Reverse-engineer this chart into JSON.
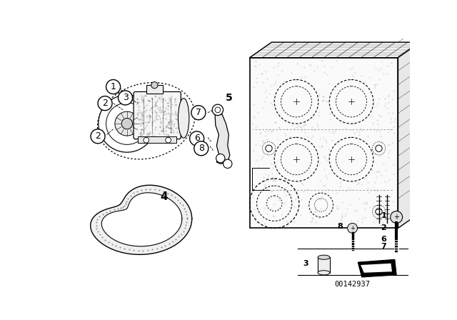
{
  "bg_color": "#ffffff",
  "diagram_number": "00142937",
  "line_color": "#000000",
  "dot_color": "#555555",
  "label_fontsize": 9,
  "small_label_fontsize": 7,
  "legend_number_fontsize": 8
}
